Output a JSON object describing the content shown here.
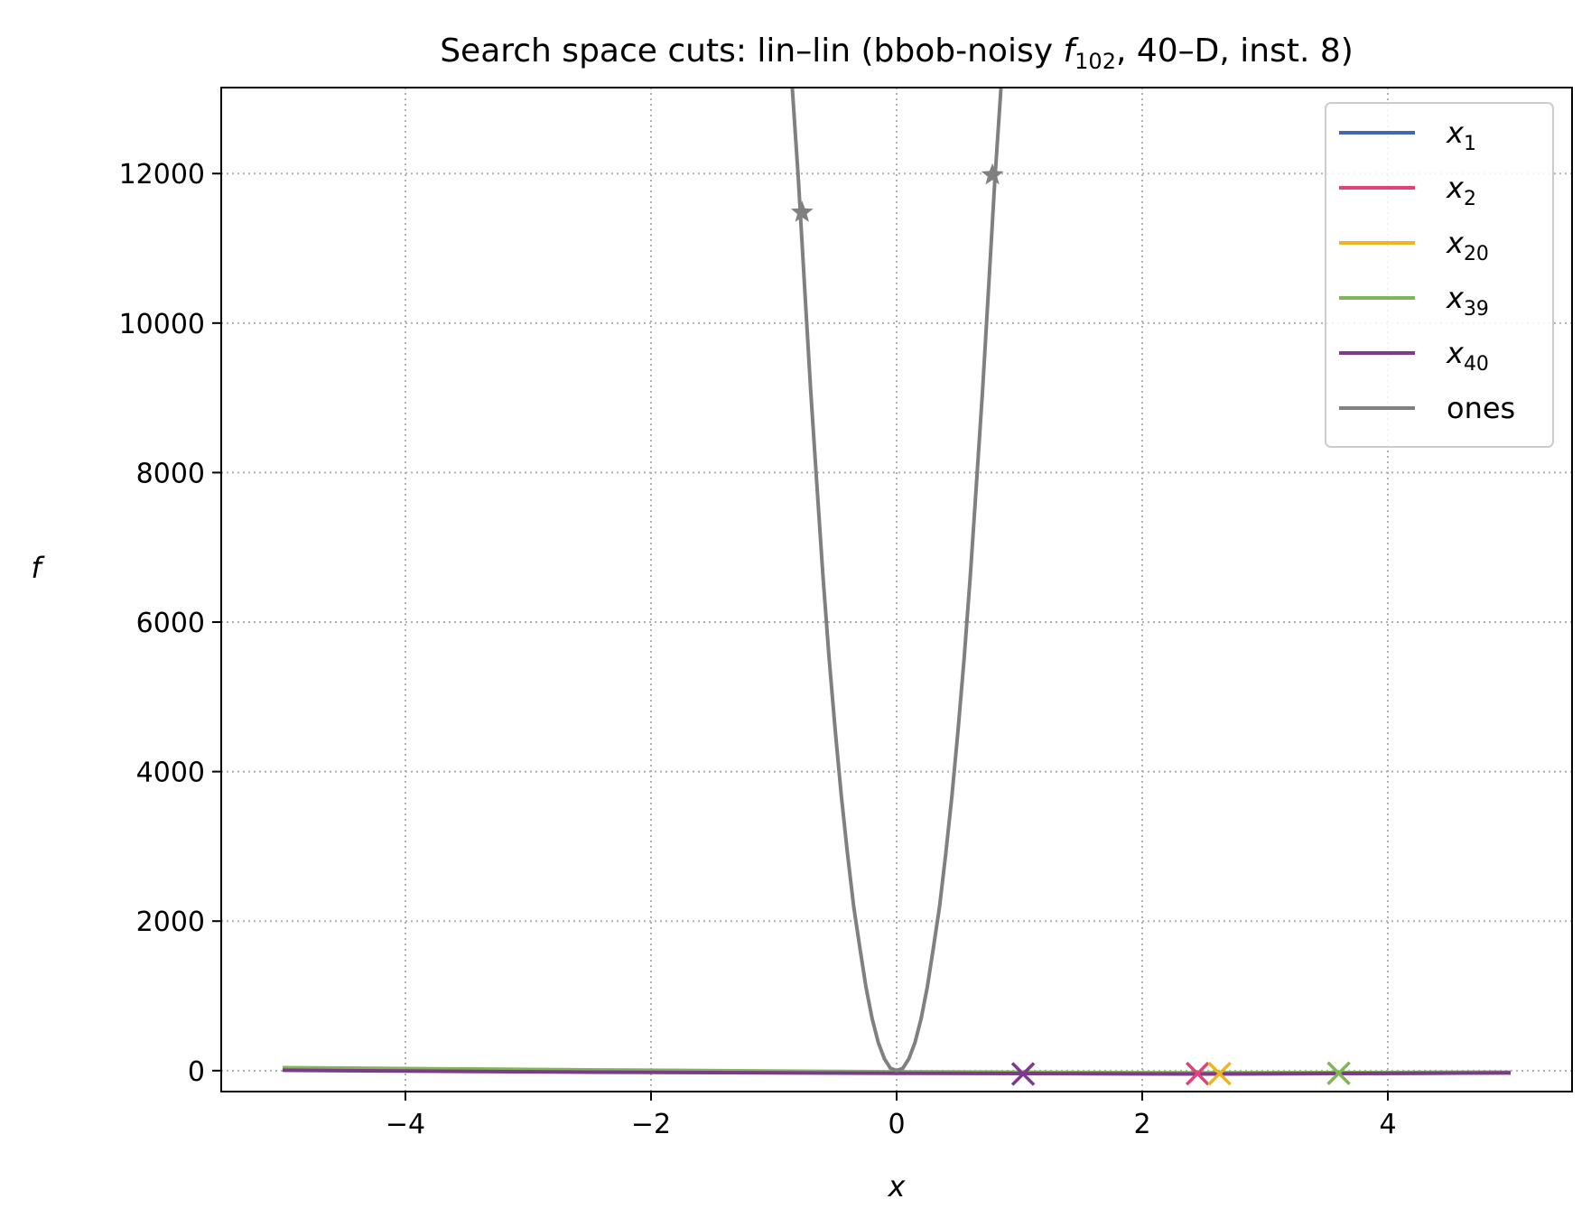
{
  "chart_data": {
    "type": "line",
    "title": "Search space cuts: lin–lin (bbob-noisy f₁₀₂, 40–D, inst. 8)",
    "title_parts": {
      "prefix": "Search space cuts: lin–lin (bbob-noisy ",
      "f_symbol": "f",
      "f_subscript": "102",
      "suffix": ", 40–D, inst. 8)"
    },
    "xlabel": "x",
    "ylabel": "f",
    "xlim": [
      -5.5,
      5.5
    ],
    "ylim": [
      -280,
      13150
    ],
    "xticks": [
      -4,
      -2,
      0,
      2,
      4
    ],
    "xtick_labels": [
      "−4",
      "−2",
      "0",
      "2",
      "4"
    ],
    "yticks": [
      0,
      2000,
      4000,
      6000,
      8000,
      10000,
      12000
    ],
    "ytick_labels": [
      "0",
      "2000",
      "4000",
      "6000",
      "8000",
      "10000",
      "12000"
    ],
    "grid": true,
    "legend_position": "top-right",
    "series": [
      {
        "name": "x",
        "sub": "1",
        "color": "#4169aa",
        "x": [
          -5,
          -2.5,
          0,
          2.5,
          5
        ],
        "y": [
          10,
          -10,
          -30,
          -45,
          -30
        ],
        "markers": [],
        "marker_type": "none"
      },
      {
        "name": "x",
        "sub": "2",
        "color": "#e2427a",
        "x": [
          -5,
          -2.5,
          0,
          2.5,
          5
        ],
        "y": [
          20,
          -5,
          -25,
          -40,
          -25
        ],
        "markers": [
          {
            "x": 2.45,
            "y": -40
          }
        ],
        "marker_type": "x"
      },
      {
        "name": "x",
        "sub": "20",
        "color": "#f0b51c",
        "x": [
          -5,
          -2.5,
          0,
          2.5,
          5
        ],
        "y": [
          25,
          0,
          -20,
          -38,
          -20
        ],
        "markers": [
          {
            "x": 2.63,
            "y": -40
          }
        ],
        "marker_type": "x"
      },
      {
        "name": "x",
        "sub": "39",
        "color": "#80b55a",
        "x": [
          -5,
          -2.5,
          0,
          2.5,
          5
        ],
        "y": [
          40,
          10,
          -15,
          -30,
          -20
        ],
        "markers": [
          {
            "x": 3.6,
            "y": -35
          }
        ],
        "marker_type": "x"
      },
      {
        "name": "x",
        "sub": "40",
        "color": "#7d3a8c",
        "x": [
          -5,
          -2.5,
          0,
          2.5,
          5
        ],
        "y": [
          5,
          -20,
          -35,
          -45,
          -30
        ],
        "markers": [
          {
            "x": 1.03,
            "y": -45
          }
        ],
        "marker_type": "x"
      },
      {
        "name": "ones",
        "sub": "",
        "color": "#808080",
        "x": [
          -0.85,
          -0.8,
          -0.75,
          -0.7,
          -0.65,
          -0.6,
          -0.55,
          -0.5,
          -0.45,
          -0.4,
          -0.35,
          -0.3,
          -0.25,
          -0.2,
          -0.15,
          -0.1,
          -0.05,
          0,
          0.05,
          0.1,
          0.15,
          0.2,
          0.25,
          0.3,
          0.35,
          0.4,
          0.45,
          0.5,
          0.55,
          0.6,
          0.65,
          0.7,
          0.75,
          0.8,
          0.85
        ],
        "y": [
          13150,
          11920,
          10500,
          9100,
          7850,
          6620,
          5520,
          4550,
          3670,
          2900,
          2200,
          1650,
          1120,
          700,
          380,
          160,
          30,
          0,
          30,
          160,
          380,
          700,
          1120,
          1650,
          2200,
          2900,
          3670,
          4550,
          5520,
          6620,
          7850,
          9100,
          10500,
          11920,
          13150
        ],
        "markers": [
          {
            "x": -0.77,
            "y": 11480
          },
          {
            "x": 0.78,
            "y": 11980
          }
        ],
        "marker_type": "star"
      }
    ]
  }
}
